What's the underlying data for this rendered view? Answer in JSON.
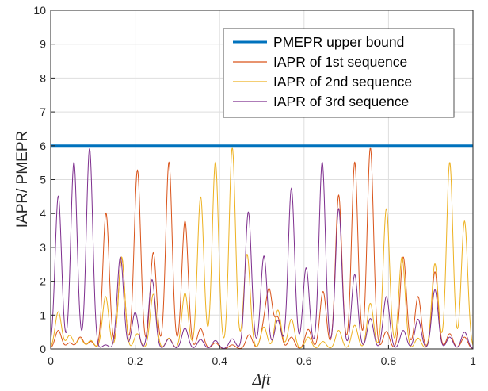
{
  "chart_data": {
    "type": "line",
    "xlabel": "Δft",
    "ylabel": "IAPR/ PMEPR",
    "xlim": [
      0,
      1
    ],
    "ylim": [
      0,
      10
    ],
    "x_ticks": [
      "0",
      "0.2",
      "0.4",
      "0.6",
      "0.8",
      "1"
    ],
    "y_ticks": [
      "0",
      "1",
      "2",
      "3",
      "4",
      "5",
      "6",
      "7",
      "8",
      "9",
      "10"
    ],
    "grid": true,
    "legend_position": "top-right",
    "series": [
      {
        "name": "PMEPR upper bound",
        "color": "#0072BD",
        "style": "constant",
        "value": 6
      },
      {
        "name": "IAPR of 1st sequence",
        "color": "#D95319",
        "peaks": [
          {
            "x": 0.018,
            "y": 0.55
          },
          {
            "x": 0.045,
            "y": 0.18
          },
          {
            "x": 0.07,
            "y": 0.35
          },
          {
            "x": 0.095,
            "y": 0.22
          },
          {
            "x": 0.131,
            "y": 4.02
          },
          {
            "x": 0.168,
            "y": 2.7
          },
          {
            "x": 0.2,
            "y": 0.72
          },
          {
            "x": 0.206,
            "y": 4.75
          },
          {
            "x": 0.243,
            "y": 2.85
          },
          {
            "x": 0.28,
            "y": 5.52
          },
          {
            "x": 0.318,
            "y": 3.78
          },
          {
            "x": 0.355,
            "y": 0.6
          },
          {
            "x": 0.39,
            "y": 0.18
          },
          {
            "x": 0.43,
            "y": 0.12
          },
          {
            "x": 0.47,
            "y": 0.42
          },
          {
            "x": 0.505,
            "y": 0.6
          },
          {
            "x": 0.518,
            "y": 1.62
          },
          {
            "x": 0.538,
            "y": 0.9
          },
          {
            "x": 0.57,
            "y": 0.35
          },
          {
            "x": 0.61,
            "y": 0.58
          },
          {
            "x": 0.645,
            "y": 1.7
          },
          {
            "x": 0.682,
            "y": 4.55
          },
          {
            "x": 0.72,
            "y": 5.52
          },
          {
            "x": 0.757,
            "y": 5.95
          },
          {
            "x": 0.795,
            "y": 0.52
          },
          {
            "x": 0.835,
            "y": 2.72
          },
          {
            "x": 0.87,
            "y": 1.55
          },
          {
            "x": 0.91,
            "y": 2.28
          },
          {
            "x": 0.945,
            "y": 0.45
          },
          {
            "x": 0.98,
            "y": 0.35
          }
        ]
      },
      {
        "name": "IAPR of 2nd sequence",
        "color": "#EDB120",
        "peaks": [
          {
            "x": 0.018,
            "y": 1.1
          },
          {
            "x": 0.045,
            "y": 0.4
          },
          {
            "x": 0.07,
            "y": 0.3
          },
          {
            "x": 0.095,
            "y": 0.25
          },
          {
            "x": 0.13,
            "y": 1.55
          },
          {
            "x": 0.168,
            "y": 2.72
          },
          {
            "x": 0.205,
            "y": 0.45
          },
          {
            "x": 0.243,
            "y": 1.62
          },
          {
            "x": 0.28,
            "y": 0.32
          },
          {
            "x": 0.318,
            "y": 1.65
          },
          {
            "x": 0.355,
            "y": 4.5
          },
          {
            "x": 0.39,
            "y": 5.52
          },
          {
            "x": 0.43,
            "y": 5.95
          },
          {
            "x": 0.465,
            "y": 2.8
          },
          {
            "x": 0.505,
            "y": 0.65
          },
          {
            "x": 0.538,
            "y": 1.15
          },
          {
            "x": 0.57,
            "y": 0.88
          },
          {
            "x": 0.61,
            "y": 0.35
          },
          {
            "x": 0.645,
            "y": 0.22
          },
          {
            "x": 0.682,
            "y": 0.55
          },
          {
            "x": 0.72,
            "y": 0.7
          },
          {
            "x": 0.757,
            "y": 1.35
          },
          {
            "x": 0.795,
            "y": 4.15
          },
          {
            "x": 0.832,
            "y": 2.72
          },
          {
            "x": 0.87,
            "y": 0.32
          },
          {
            "x": 0.91,
            "y": 2.52
          },
          {
            "x": 0.945,
            "y": 5.52
          },
          {
            "x": 0.98,
            "y": 3.78
          }
        ]
      },
      {
        "name": "IAPR of 3rd sequence",
        "color": "#7E2F8E",
        "peaks": [
          {
            "x": 0.018,
            "y": 4.52
          },
          {
            "x": 0.055,
            "y": 5.52
          },
          {
            "x": 0.092,
            "y": 5.92
          },
          {
            "x": 0.13,
            "y": 0.12
          },
          {
            "x": 0.165,
            "y": 2.72
          },
          {
            "x": 0.2,
            "y": 1.08
          },
          {
            "x": 0.24,
            "y": 2.05
          },
          {
            "x": 0.28,
            "y": 0.3
          },
          {
            "x": 0.318,
            "y": 0.62
          },
          {
            "x": 0.355,
            "y": 0.28
          },
          {
            "x": 0.39,
            "y": 0.25
          },
          {
            "x": 0.43,
            "y": 0.3
          },
          {
            "x": 0.468,
            "y": 4.05
          },
          {
            "x": 0.505,
            "y": 2.75
          },
          {
            "x": 0.538,
            "y": 0.85
          },
          {
            "x": 0.57,
            "y": 4.75
          },
          {
            "x": 0.605,
            "y": 2.4
          },
          {
            "x": 0.643,
            "y": 5.52
          },
          {
            "x": 0.682,
            "y": 4.15
          },
          {
            "x": 0.72,
            "y": 2.2
          },
          {
            "x": 0.757,
            "y": 0.9
          },
          {
            "x": 0.795,
            "y": 1.55
          },
          {
            "x": 0.835,
            "y": 0.55
          },
          {
            "x": 0.87,
            "y": 0.88
          },
          {
            "x": 0.91,
            "y": 1.75
          },
          {
            "x": 0.945,
            "y": 0.35
          },
          {
            "x": 0.98,
            "y": 0.5
          }
        ]
      }
    ]
  }
}
